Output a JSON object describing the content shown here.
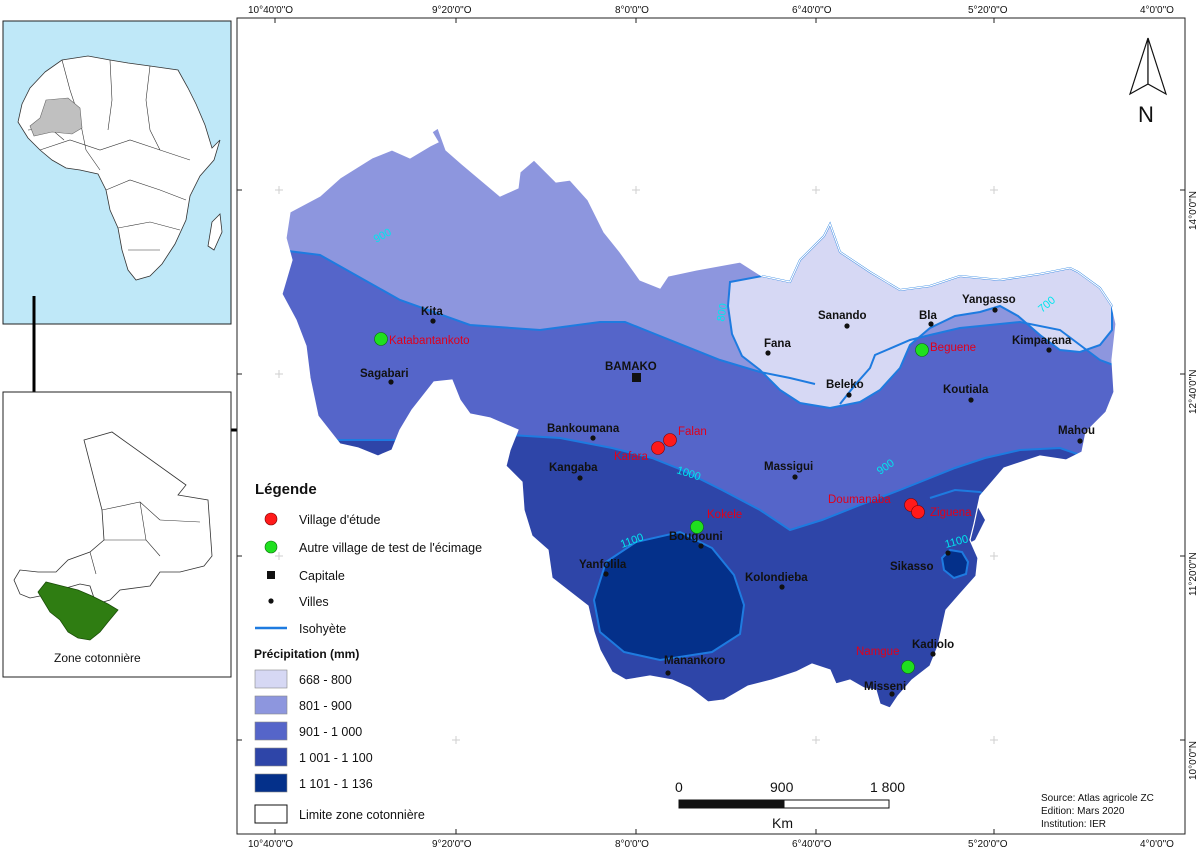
{
  "axes": {
    "top_longitudes": [
      "10°40'0\"O",
      "9°20'0\"O",
      "8°0'0\"O",
      "6°40'0\"O",
      "5°20'0\"O",
      "4°0'0\"O"
    ],
    "bottom_longitudes": [
      "10°40'0\"O",
      "9°20'0\"O",
      "8°0'0\"O",
      "6°40'0\"O",
      "5°20'0\"O",
      "4°0'0\"O"
    ],
    "right_latitudes": [
      "14°0'0\"N",
      "12°40'0\"N",
      "11°20'0\"N",
      "10°0'0\"N"
    ]
  },
  "north_arrow": {
    "label": "N"
  },
  "inset": {
    "zone_label": "Zone cotonnière"
  },
  "cities": {
    "kita": "Kita",
    "sagabari": "Sagabari",
    "bamako": "BAMAKO",
    "bankoumana": "Bankoumana",
    "kangaba": "Kangaba",
    "bougouni": "Bougouni",
    "yanfolila": "Yanfolila",
    "manankoro": "Manankoro",
    "kolondieba": "Kolondieba",
    "massigui": "Massigui",
    "fana": "Fana",
    "sanando": "Sanando",
    "bla": "Bla",
    "yangasso": "Yangasso",
    "kimparana": "Kimparana",
    "beleko": "Beleko",
    "koutiala": "Koutiala",
    "mahou": "Mahou",
    "sikasso": "Sikasso",
    "kadiolo": "Kadiolo",
    "misseni": "Misseni"
  },
  "villages": {
    "katabantankoto": "Katabantankoto",
    "falan": "Falan",
    "kafara": "Kafara",
    "kokele": "Kokele",
    "beguene": "Beguene",
    "doumanaba": "Doumanaba",
    "ziguena": "Ziguena",
    "namgue": "Namgue"
  },
  "isohyets": {
    "i900_west": "900",
    "i800_north": "800",
    "i700_east": "700",
    "i1000": "1000",
    "i900_east": "900",
    "i1100_west": "1100",
    "i1100_east": "1100"
  },
  "legend": {
    "title": "Légende",
    "study_village": "Village d'étude",
    "test_village": "Autre village de test de l'écimage",
    "capital": "Capitale",
    "towns": "Villes",
    "isohyet": "Isohyète",
    "precip_title": "Précipitation (mm)",
    "classes": [
      {
        "label": "668 - 800",
        "color": "#d6d8f4"
      },
      {
        "label": "801 - 900",
        "color": "#8d96de"
      },
      {
        "label": "901 - 1 000",
        "color": "#5565c9"
      },
      {
        "label": "1 001 - 1 100",
        "color": "#2e45a8"
      },
      {
        "label": "1 101 - 1 136",
        "color": "#04308a"
      }
    ],
    "zone_limit": "Limite zone cotonnière"
  },
  "scale_bar": {
    "ticks": [
      "0",
      "900",
      "1 800"
    ],
    "unit": "Km"
  },
  "source": {
    "line1": "Source: Atlas agricole ZC",
    "line2": "Edition: Mars 2020",
    "line3": "Institution: IER"
  },
  "colors": {
    "study_village": "#ff1a1a",
    "test_village": "#1fe01f",
    "isohyet": "#1e7be0",
    "inset_ocean": "#bfe8f8",
    "inset_mali": "#c0c0c0",
    "inset_zone": "#2f7d12"
  }
}
